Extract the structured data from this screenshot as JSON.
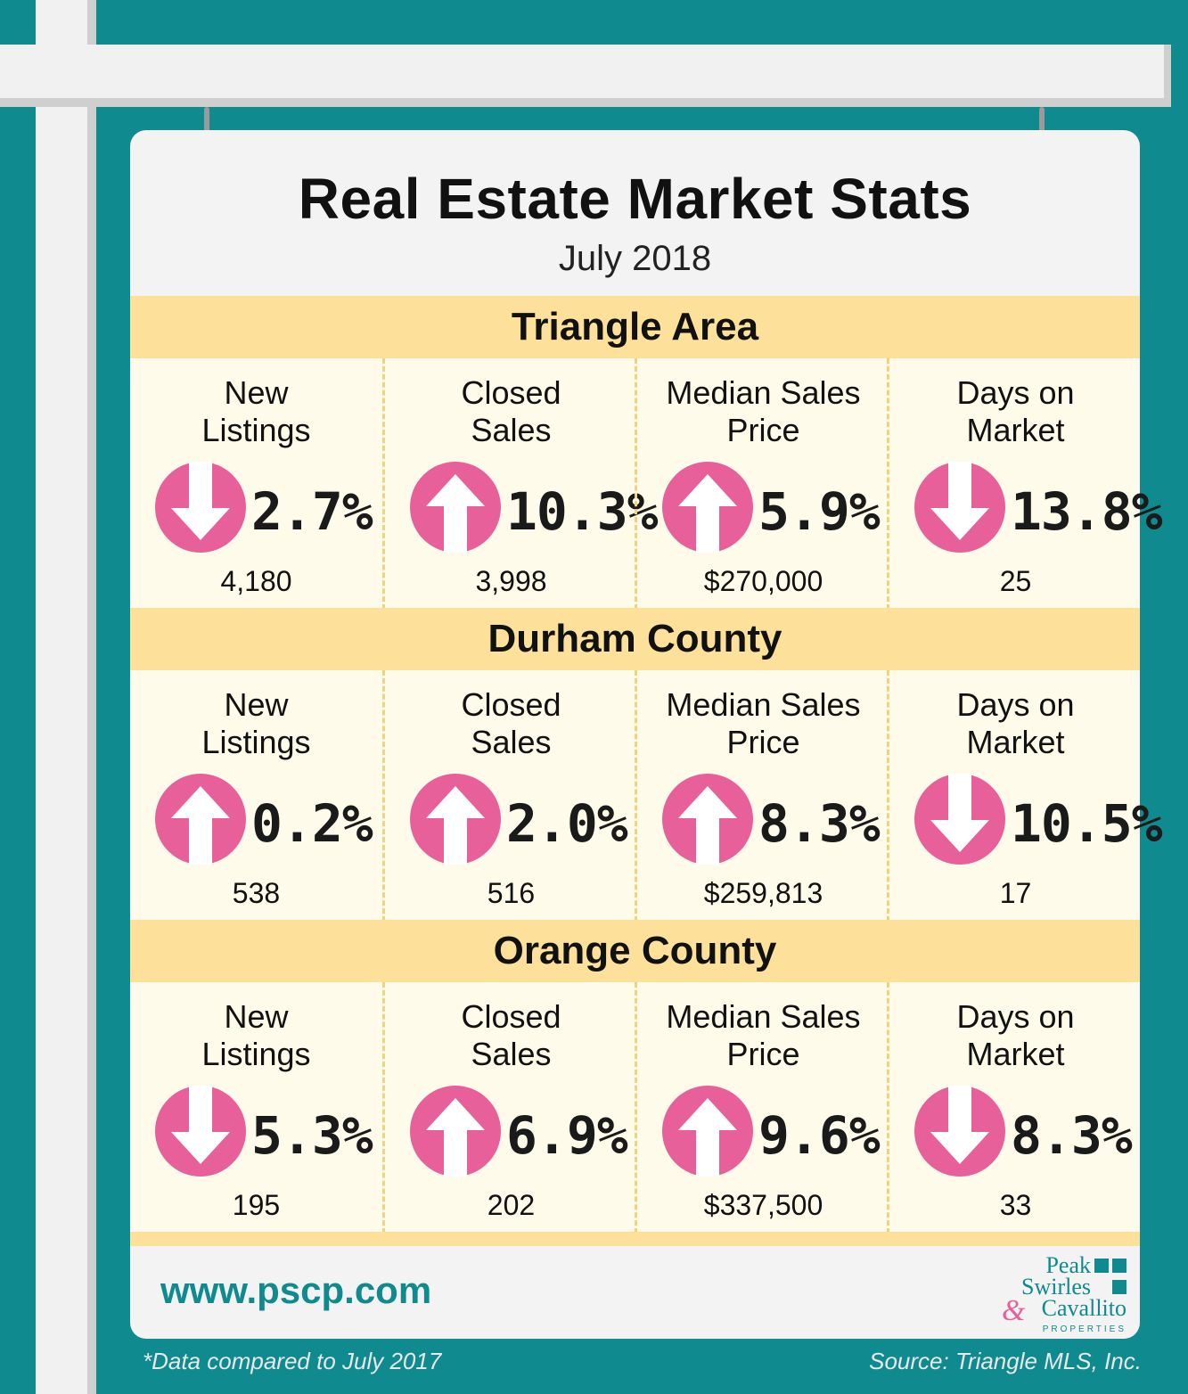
{
  "title": "Real Estate Market Stats",
  "subtitle": "July 2018",
  "colors": {
    "teal": "#0f8a8f",
    "pink": "#e8609a",
    "yellow": "#fde19a",
    "cream": "#fffbea"
  },
  "sections": [
    {
      "name": "Triangle Area",
      "stats": [
        {
          "label": [
            "New",
            "Listings"
          ],
          "direction": "down",
          "icon": "arrow-down-icon",
          "percent": "2.7%",
          "value": "4,180"
        },
        {
          "label": [
            "Closed",
            "Sales"
          ],
          "direction": "up",
          "icon": "arrow-up-icon",
          "percent": "10.3%",
          "value": "3,998"
        },
        {
          "label": [
            "Median Sales",
            "Price"
          ],
          "direction": "up",
          "icon": "arrow-up-icon",
          "percent": "5.9%",
          "value": "$270,000"
        },
        {
          "label": [
            "Days on",
            "Market"
          ],
          "direction": "down",
          "icon": "arrow-down-icon",
          "percent": "13.8%",
          "value": "25"
        }
      ]
    },
    {
      "name": "Durham County",
      "stats": [
        {
          "label": [
            "New",
            "Listings"
          ],
          "direction": "up",
          "icon": "arrow-up-icon",
          "percent": "0.2%",
          "value": "538"
        },
        {
          "label": [
            "Closed",
            "Sales"
          ],
          "direction": "up",
          "icon": "arrow-up-icon",
          "percent": "2.0%",
          "value": "516"
        },
        {
          "label": [
            "Median Sales",
            "Price"
          ],
          "direction": "up",
          "icon": "arrow-up-icon",
          "percent": "8.3%",
          "value": "$259,813"
        },
        {
          "label": [
            "Days on",
            "Market"
          ],
          "direction": "down",
          "icon": "arrow-down-icon",
          "percent": "10.5%",
          "value": "17"
        }
      ]
    },
    {
      "name": "Orange County",
      "stats": [
        {
          "label": [
            "New",
            "Listings"
          ],
          "direction": "down",
          "icon": "arrow-down-icon",
          "percent": "5.3%",
          "value": "195"
        },
        {
          "label": [
            "Closed",
            "Sales"
          ],
          "direction": "up",
          "icon": "arrow-up-icon",
          "percent": "6.9%",
          "value": "202"
        },
        {
          "label": [
            "Median Sales",
            "Price"
          ],
          "direction": "up",
          "icon": "arrow-up-icon",
          "percent": "9.6%",
          "value": "$337,500"
        },
        {
          "label": [
            "Days on",
            "Market"
          ],
          "direction": "down",
          "icon": "arrow-down-icon",
          "percent": "8.3%",
          "value": "33"
        }
      ]
    }
  ],
  "footer": {
    "url": "www.pscp.com",
    "logo": {
      "line1": "Peak",
      "line2": "Swirles",
      "amp": "&",
      "line3": "Cavallito",
      "line4": "PROPERTIES"
    }
  },
  "notes": {
    "left": "*Data compared to July 2017",
    "right": "Source: Triangle MLS, Inc."
  }
}
